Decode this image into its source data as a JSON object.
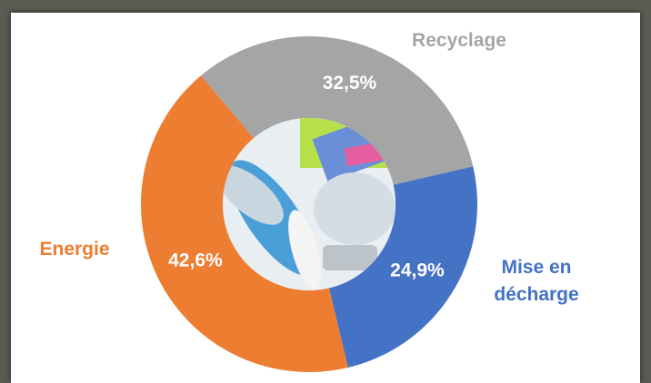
{
  "chart_data": {
    "type": "donut",
    "categories": [
      "Recyclage",
      "Mise en décharge",
      "Energie"
    ],
    "values": [
      32.5,
      24.9,
      42.6
    ],
    "value_labels": [
      "32,5%",
      "24,9%",
      "42,6%"
    ],
    "colors": [
      "#a5a5a5",
      "#4472c4",
      "#ed7d31"
    ]
  }
}
